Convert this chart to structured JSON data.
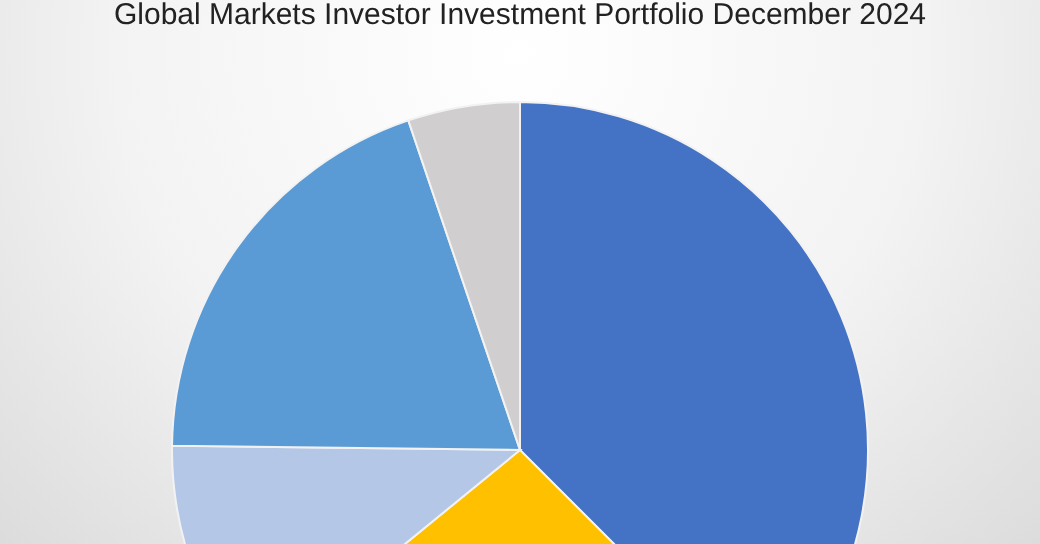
{
  "chart_data": {
    "type": "pie",
    "title": "Global Markets Investor Investment Portfolio December 2024",
    "categories": [
      null,
      null,
      null,
      null,
      null
    ],
    "values": [
      37.5,
      26.6,
      11.1,
      19.6,
      5.2
    ],
    "colors": [
      "#4472c4",
      "#ffc000",
      "#b4c7e7",
      "#5b9bd5",
      "#d0cece"
    ],
    "legend": false
  }
}
